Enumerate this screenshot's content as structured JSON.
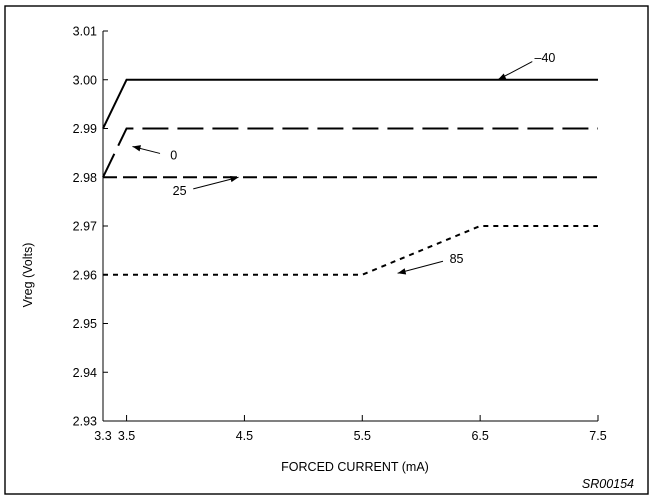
{
  "chart_data": {
    "type": "line",
    "title": "",
    "xlabel": "FORCED CURRENT (mA)",
    "ylabel": "Vreg (Volts)",
    "xlim": [
      3.3,
      7.5
    ],
    "ylim": [
      2.93,
      3.01
    ],
    "x_ticks": [
      "3.3",
      "3.5",
      "4.5",
      "5.5",
      "6.5",
      "7.5"
    ],
    "y_ticks": [
      "3.01",
      "3.00",
      "2.99",
      "2.98",
      "2.97",
      "2.96",
      "2.95",
      "2.94",
      "2.93"
    ],
    "grid": false,
    "legend": "none",
    "series": [
      {
        "name": "–40",
        "line_style": "solid",
        "x": [
          3.3,
          3.5,
          7.5
        ],
        "y": [
          2.99,
          3.0,
          3.0
        ]
      },
      {
        "name": "0",
        "line_style": "long-dash",
        "x": [
          3.3,
          3.5,
          7.5
        ],
        "y": [
          2.98,
          2.99,
          2.99
        ]
      },
      {
        "name": "25",
        "line_style": "medium-dash",
        "x": [
          3.3,
          7.5
        ],
        "y": [
          2.98,
          2.98
        ]
      },
      {
        "name": "85",
        "line_style": "dotted",
        "x": [
          3.3,
          5.5,
          6.5,
          7.5
        ],
        "y": [
          2.96,
          2.96,
          2.97,
          2.97
        ]
      }
    ],
    "annotations": [
      {
        "text": "–40",
        "series": 0,
        "arrow_to": [
          6.65,
          3.0
        ],
        "text_at": [
          7.05,
          3.0045
        ]
      },
      {
        "text": "0",
        "series": 1,
        "arrow_to": [
          3.55,
          2.9863
        ],
        "text_at": [
          3.9,
          2.9845
        ]
      },
      {
        "text": "25",
        "series": 2,
        "arrow_to": [
          4.45,
          2.98
        ],
        "text_at": [
          3.95,
          2.9772
        ]
      },
      {
        "text": "85",
        "series": 3,
        "arrow_to": [
          5.8,
          2.9603
        ],
        "text_at": [
          6.3,
          2.9632
        ]
      }
    ],
    "figure_code": "SR00154"
  }
}
